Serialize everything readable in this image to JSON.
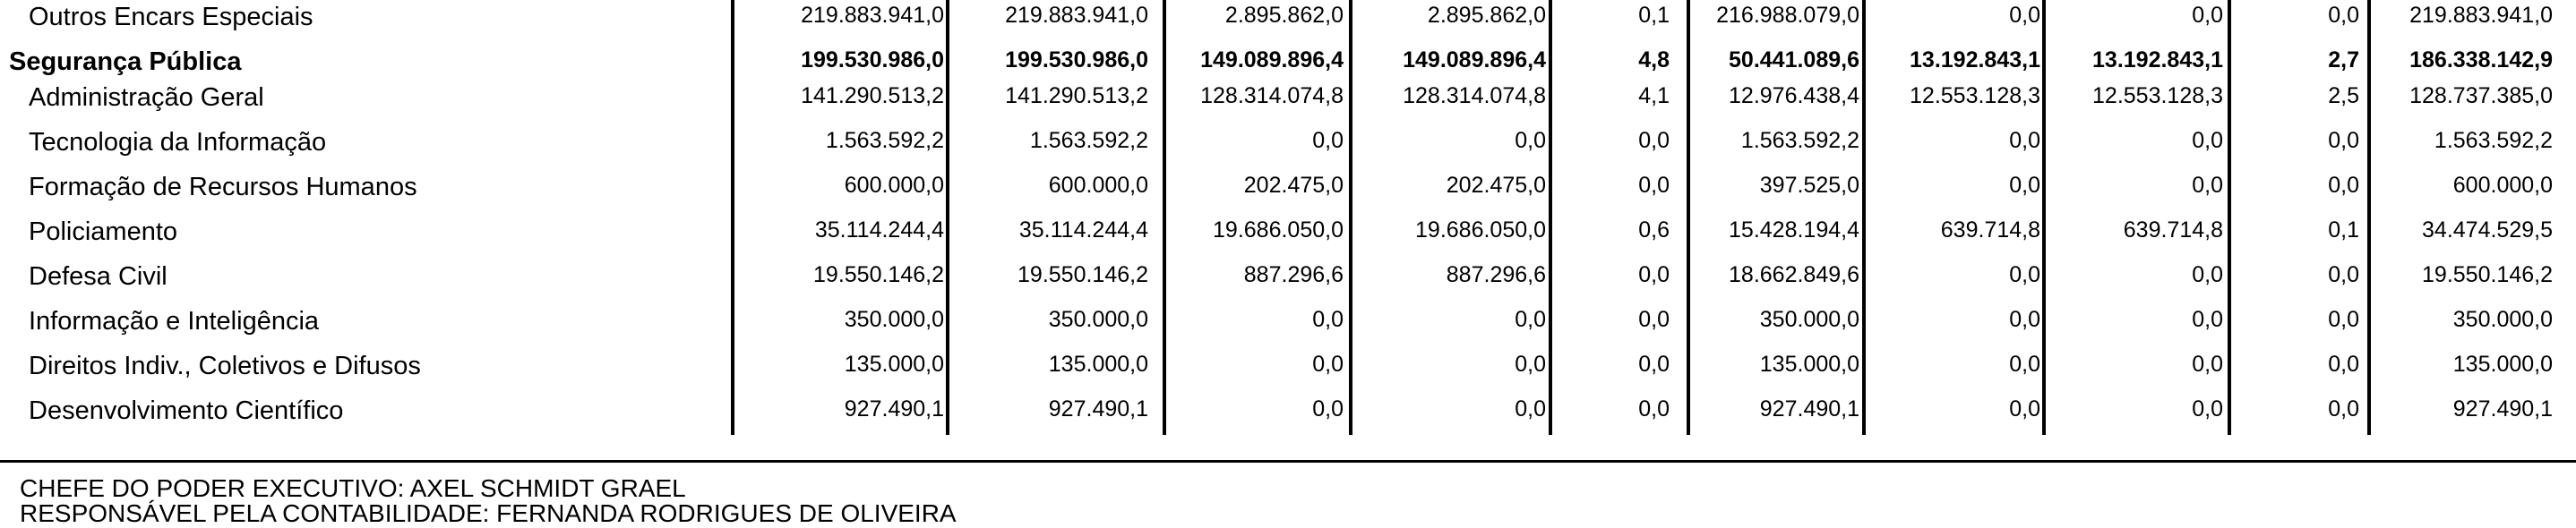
{
  "rows": [
    {
      "label": "Outros Encars Especiais",
      "bold": false,
      "values": [
        "219.883.941,0",
        "219.883.941,0",
        "2.895.862,0",
        "2.895.862,0",
        "0,1",
        "216.988.079,0",
        "0,0",
        "0,0",
        "0,0",
        "219.883.941,0"
      ]
    },
    {
      "label": "Segurança Pública",
      "bold": true,
      "values": [
        "199.530.986,0",
        "199.530.986,0",
        "149.089.896,4",
        "149.089.896,4",
        "4,8",
        "50.441.089,6",
        "13.192.843,1",
        "13.192.843,1",
        "2,7",
        "186.338.142,9"
      ]
    },
    {
      "label": "Administração Geral",
      "bold": false,
      "values": [
        "141.290.513,2",
        "141.290.513,2",
        "128.314.074,8",
        "128.314.074,8",
        "4,1",
        "12.976.438,4",
        "12.553.128,3",
        "12.553.128,3",
        "2,5",
        "128.737.385,0"
      ]
    },
    {
      "label": "Tecnologia da Informação",
      "bold": false,
      "values": [
        "1.563.592,2",
        "1.563.592,2",
        "0,0",
        "0,0",
        "0,0",
        "1.563.592,2",
        "0,0",
        "0,0",
        "0,0",
        "1.563.592,2"
      ]
    },
    {
      "label": "Formação de Recursos Humanos",
      "bold": false,
      "values": [
        "600.000,0",
        "600.000,0",
        "202.475,0",
        "202.475,0",
        "0,0",
        "397.525,0",
        "0,0",
        "0,0",
        "0,0",
        "600.000,0"
      ]
    },
    {
      "label": "Policiamento",
      "bold": false,
      "values": [
        "35.114.244,4",
        "35.114.244,4",
        "19.686.050,0",
        "19.686.050,0",
        "0,6",
        "15.428.194,4",
        "639.714,8",
        "639.714,8",
        "0,1",
        "34.474.529,5"
      ]
    },
    {
      "label": "Defesa Civil",
      "bold": false,
      "values": [
        "19.550.146,2",
        "19.550.146,2",
        "887.296,6",
        "887.296,6",
        "0,0",
        "18.662.849,6",
        "0,0",
        "0,0",
        "0,0",
        "19.550.146,2"
      ]
    },
    {
      "label": "Informação e Inteligência",
      "bold": false,
      "values": [
        "350.000,0",
        "350.000,0",
        "0,0",
        "0,0",
        "0,0",
        "350.000,0",
        "0,0",
        "0,0",
        "0,0",
        "350.000,0"
      ]
    },
    {
      "label": "Direitos Indiv., Coletivos e Difusos",
      "bold": false,
      "values": [
        "135.000,0",
        "135.000,0",
        "0,0",
        "0,0",
        "0,0",
        "135.000,0",
        "0,0",
        "0,0",
        "0,0",
        "135.000,0"
      ]
    },
    {
      "label": "Desenvolvimento Científico",
      "bold": false,
      "values": [
        "927.490,1",
        "927.490,1",
        "0,0",
        "0,0",
        "0,0",
        "927.490,1",
        "0,0",
        "0,0",
        "0,0",
        "927.490,1"
      ]
    }
  ],
  "footer": {
    "chief": "CHEFE DO PODER EXECUTIVO: AXEL SCHMIDT GRAEL",
    "accountant": "RESPONSÁVEL PELA CONTABILIDADE: FERNANDA RODRIGUES DE OLIVEIRA"
  }
}
